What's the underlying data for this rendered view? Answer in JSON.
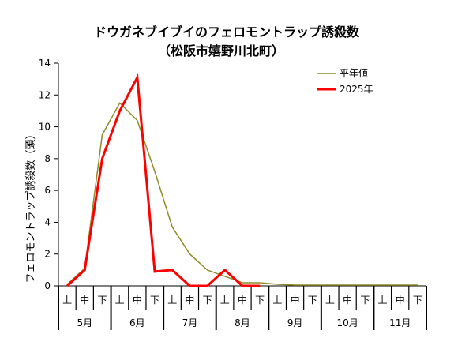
{
  "chart_data": {
    "type": "line",
    "title": "ドウガネブイブイのフェロモントラップ誘殺数",
    "subtitle": "（松阪市嬉野川北町）",
    "ylabel": "フェロモントラップ誘殺数（頭）",
    "xlabel": "",
    "ylim": [
      0,
      14
    ],
    "yticks": [
      0,
      2,
      4,
      6,
      8,
      10,
      12,
      14
    ],
    "grid": false,
    "legend_position": "top-right",
    "categories": [
      "上",
      "中",
      "下",
      "上",
      "中",
      "下",
      "上",
      "中",
      "下",
      "上",
      "中",
      "下",
      "上",
      "中",
      "下",
      "上",
      "中",
      "下",
      "上",
      "中",
      "下"
    ],
    "months": [
      "5月",
      "6月",
      "7月",
      "8月",
      "9月",
      "10月",
      "11月"
    ],
    "series": [
      {
        "name": "平年値",
        "color": "#8c8c2a",
        "values": [
          0.1,
          1.1,
          9.5,
          11.5,
          10.4,
          7.2,
          3.7,
          2.0,
          1.0,
          0.6,
          0.2,
          0.2,
          0.1,
          0.05,
          0.05,
          0.05,
          0.05,
          0.05,
          0.05,
          0.05,
          0.05
        ]
      },
      {
        "name": "2025年",
        "color": "#ff0000",
        "values": [
          0,
          1.0,
          8.0,
          11.0,
          13.1,
          0.9,
          1.0,
          0.0,
          0.0,
          1.0,
          0.0,
          0.0,
          null,
          null,
          null,
          null,
          null,
          null,
          null,
          null,
          null
        ]
      }
    ]
  }
}
